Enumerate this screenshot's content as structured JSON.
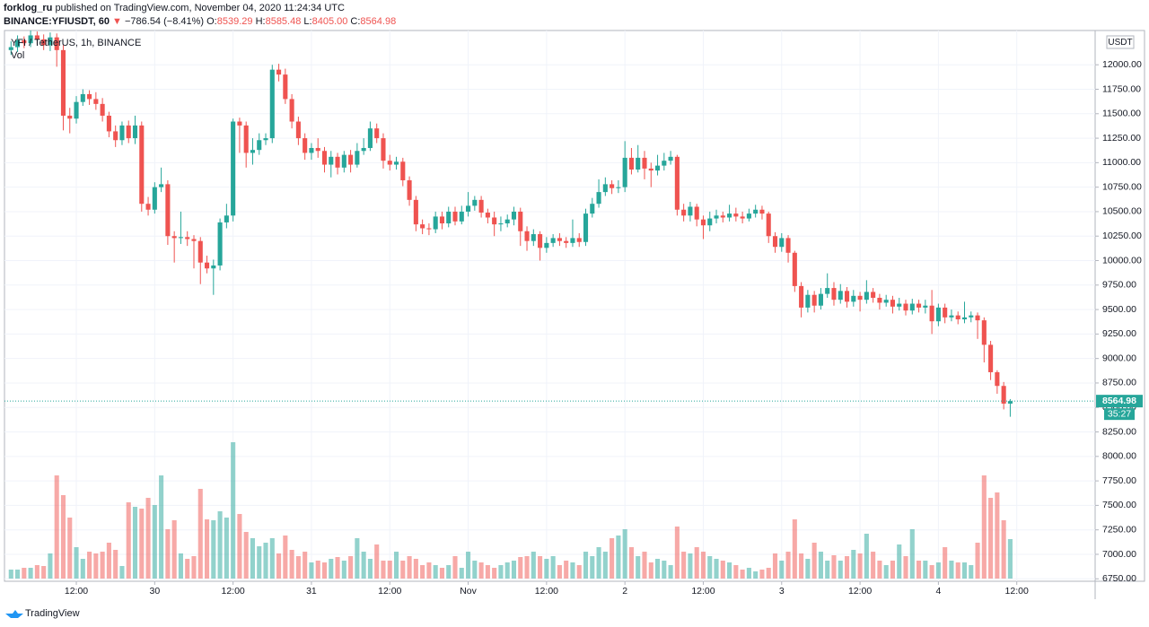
{
  "header": {
    "publisher": "forklog_ru",
    "published_text": "published on TradingView.com, November 04, 2020 11:24:34 UTC",
    "symbol": "BINANCE:YFIUSDT, 60",
    "arrow": "▼",
    "change": "−786.54 (−8.41%)",
    "ohlc": [
      {
        "key": "O:",
        "value": "8539.29"
      },
      {
        "key": "H:",
        "value": "8585.48"
      },
      {
        "key": "L:",
        "value": "8405.00"
      },
      {
        "key": "C:",
        "value": "8564.98"
      }
    ]
  },
  "legend": {
    "title": "YFI / TetherUS, 1h, BINANCE",
    "volume": "Vol"
  },
  "footer": {
    "brand": "TradingView"
  },
  "chart_data": {
    "type": "candlestick",
    "currency": "USDT",
    "up_color": "#26a69a",
    "down_color": "#ef5350",
    "grid": true,
    "ylim": [
      6725,
      12350
    ],
    "yticks": [
      {
        "value": 6750,
        "label": "6750.00"
      },
      {
        "value": 7000,
        "label": "7000.00"
      },
      {
        "value": 7250,
        "label": "7250.00"
      },
      {
        "value": 7500,
        "label": "7500.00"
      },
      {
        "value": 7750,
        "label": "7750.00"
      },
      {
        "value": 8000,
        "label": "8000.00"
      },
      {
        "value": 8250,
        "label": "8250.00"
      },
      {
        "value": 8500,
        "label": "8500.00"
      },
      {
        "value": 8750,
        "label": "8750.00"
      },
      {
        "value": 9000,
        "label": "9000.00"
      },
      {
        "value": 9250,
        "label": "9250.00"
      },
      {
        "value": 9500,
        "label": "9500.00"
      },
      {
        "value": 9750,
        "label": "9750.00"
      },
      {
        "value": 10000,
        "label": "10000.00"
      },
      {
        "value": 10250,
        "label": "10250.00"
      },
      {
        "value": 10500,
        "label": "10500.00"
      },
      {
        "value": 10750,
        "label": "10750.00"
      },
      {
        "value": 11000,
        "label": "11000.00"
      },
      {
        "value": 11250,
        "label": "11250.00"
      },
      {
        "value": 11500,
        "label": "11500.00"
      },
      {
        "value": 11750,
        "label": "11750.00"
      },
      {
        "value": 12000,
        "label": "12000.00"
      }
    ],
    "xlim": [
      -1,
      166
    ],
    "xticks": [
      {
        "value": 10,
        "label": "12:00"
      },
      {
        "value": 22,
        "label": "30"
      },
      {
        "value": 34,
        "label": "12:00"
      },
      {
        "value": 46,
        "label": "31"
      },
      {
        "value": 58,
        "label": "12:00"
      },
      {
        "value": 70,
        "label": "Nov"
      },
      {
        "value": 82,
        "label": "12:00"
      },
      {
        "value": 94,
        "label": "2"
      },
      {
        "value": 106,
        "label": "12:00"
      },
      {
        "value": 118,
        "label": "3"
      },
      {
        "value": 130,
        "label": "12:00"
      },
      {
        "value": 142,
        "label": "4"
      },
      {
        "value": 154,
        "label": "12:00"
      }
    ],
    "last_price": 8564.98,
    "last_price_label": "8564.98",
    "countdown": "35:27",
    "open": [
      12150,
      12180,
      12250,
      12220,
      12300,
      12260,
      12200,
      12280,
      12150,
      11480,
      11450,
      11620,
      11700,
      11650,
      11600,
      11480,
      11320,
      11230,
      11380,
      11250,
      11380,
      10580,
      10520,
      10750,
      10780,
      10250,
      10230,
      10240,
      10220,
      10200,
      9980,
      9920,
      9950,
      10390,
      10460,
      11420,
      11380,
      11100,
      11130,
      11230,
      11250,
      11950,
      11900,
      11650,
      11420,
      11250,
      11100,
      11150,
      11120,
      10980,
      11060,
      10950,
      11080,
      10980,
      11120,
      11150,
      11350,
      11250,
      11020,
      10980,
      11010,
      10820,
      10620,
      10370,
      10330,
      10320,
      10450,
      10380,
      10500,
      10400,
      10500,
      10560,
      10620,
      10490,
      10440,
      10370,
      10380,
      10420,
      10500,
      10300,
      10200,
      10270,
      10130,
      10180,
      10230,
      10200,
      10180,
      10230,
      10190,
      10480,
      10580,
      10700,
      10780,
      10740,
      10750,
      11050,
      10930,
      11050,
      10940,
      10920,
      10970,
      11020,
      11060,
      10520,
      10460,
      10550,
      10420,
      10360,
      10430,
      10460,
      10440,
      10480,
      10450,
      10430,
      10480,
      10520,
      10480,
      10250,
      10140,
      10230,
      10080,
      9740,
      9520,
      9650,
      9540,
      9660,
      9720,
      9600,
      9690,
      9580,
      9640,
      9600,
      9680,
      9620,
      9570,
      9600,
      9530,
      9560,
      9490,
      9560,
      9520,
      9540,
      9380,
      9520,
      9420,
      9440,
      9400,
      9420,
      9440,
      9390,
      9140,
      8860,
      8720,
      8539.29
    ],
    "high": [
      12240,
      12300,
      12290,
      12350,
      12340,
      12310,
      12330,
      12320,
      12200,
      11560,
      11680,
      11750,
      11740,
      11720,
      11660,
      11520,
      11380,
      11420,
      11430,
      11480,
      11420,
      10650,
      10800,
      10950,
      10820,
      10300,
      10500,
      10300,
      10260,
      10240,
      10050,
      10010,
      10430,
      10580,
      11450,
      11460,
      11420,
      11250,
      11300,
      11300,
      12000,
      12010,
      11960,
      11700,
      11470,
      11300,
      11200,
      11250,
      11160,
      11120,
      11100,
      11120,
      11130,
      11200,
      11250,
      11420,
      11400,
      11300,
      11080,
      11060,
      11050,
      10860,
      10660,
      10420,
      10380,
      10500,
      10500,
      10550,
      10550,
      10560,
      10700,
      10660,
      10660,
      10530,
      10500,
      10450,
      10470,
      10550,
      10540,
      10350,
      10320,
      10300,
      10240,
      10270,
      10280,
      10240,
      10420,
      10280,
      10530,
      10640,
      10830,
      10850,
      10820,
      10820,
      11220,
      11150,
      11180,
      11120,
      11000,
      11080,
      11100,
      11120,
      11080,
      10580,
      10600,
      10580,
      10460,
      10500,
      10520,
      10500,
      10570,
      10540,
      10500,
      10530,
      10570,
      10560,
      10500,
      10290,
      10280,
      10260,
      10100,
      9780,
      9700,
      9690,
      9720,
      9870,
      9780,
      9760,
      9730,
      9700,
      9680,
      9800,
      9720,
      9660,
      9650,
      9640,
      9620,
      9600,
      9610,
      9600,
      9600,
      9700,
      9560,
      9560,
      9500,
      9480,
      9580,
      9480,
      9470,
      9420,
      9180,
      8880,
      8760,
      8585.48
    ],
    "low": [
      12100,
      12130,
      12170,
      12180,
      12210,
      12150,
      12140,
      11980,
      11330,
      11300,
      11400,
      11580,
      11590,
      11540,
      11420,
      11260,
      11160,
      11180,
      11200,
      11190,
      10500,
      10460,
      10480,
      10700,
      10160,
      9980,
      10170,
      10150,
      9920,
      9760,
      9870,
      9650,
      9900,
      10330,
      10400,
      11100,
      10950,
      10980,
      11080,
      11180,
      11200,
      11830,
      11600,
      11350,
      11180,
      11030,
      11030,
      11050,
      10900,
      10850,
      10880,
      10900,
      10900,
      10950,
      11080,
      11120,
      11200,
      10940,
      10920,
      10930,
      10760,
      10560,
      10300,
      10270,
      10260,
      10280,
      10320,
      10340,
      10360,
      10370,
      10450,
      10510,
      10440,
      10380,
      10250,
      10300,
      10340,
      10360,
      10150,
      10100,
      10150,
      10000,
      10080,
      10140,
      10150,
      10130,
      10140,
      10140,
      10150,
      10440,
      10540,
      10660,
      10680,
      10690,
      10700,
      10880,
      10900,
      10830,
      10750,
      10870,
      10920,
      10980,
      10460,
      10400,
      10400,
      10350,
      10220,
      10300,
      10380,
      10390,
      10400,
      10400,
      10380,
      10400,
      10440,
      10420,
      10180,
      10080,
      10090,
      9980,
      9680,
      9420,
      9470,
      9470,
      9500,
      9620,
      9540,
      9560,
      9520,
      9530,
      9480,
      9560,
      9570,
      9500,
      9530,
      9460,
      9490,
      9440,
      9450,
      9470,
      9460,
      9250,
      9330,
      9360,
      9380,
      9350,
      9360,
      9370,
      9200,
      8960,
      8780,
      8640,
      8480,
      8405
    ],
    "close": [
      12180,
      12250,
      12220,
      12300,
      12260,
      12200,
      12280,
      12150,
      11480,
      11450,
      11620,
      11700,
      11650,
      11600,
      11480,
      11320,
      11230,
      11380,
      11250,
      11380,
      10580,
      10520,
      10750,
      10780,
      10250,
      10230,
      10240,
      10220,
      10200,
      9980,
      9920,
      9950,
      10390,
      10460,
      11420,
      11380,
      11100,
      11130,
      11230,
      11250,
      11950,
      11900,
      11650,
      11420,
      11250,
      11100,
      11150,
      11120,
      10980,
      11060,
      10950,
      11080,
      10980,
      11120,
      11150,
      11350,
      11250,
      11020,
      10980,
      11010,
      10820,
      10620,
      10370,
      10330,
      10320,
      10450,
      10380,
      10500,
      10400,
      10500,
      10560,
      10620,
      10490,
      10440,
      10370,
      10380,
      10420,
      10500,
      10300,
      10200,
      10270,
      10130,
      10180,
      10230,
      10200,
      10180,
      10230,
      10190,
      10480,
      10580,
      10700,
      10780,
      10740,
      10750,
      11050,
      10930,
      11050,
      10940,
      10920,
      10970,
      11020,
      11060,
      10520,
      10460,
      10550,
      10420,
      10360,
      10430,
      10460,
      10440,
      10480,
      10450,
      10430,
      10480,
      10520,
      10480,
      10250,
      10140,
      10230,
      10080,
      9740,
      9520,
      9650,
      9540,
      9660,
      9720,
      9600,
      9690,
      9580,
      9640,
      9600,
      9680,
      9620,
      9570,
      9600,
      9530,
      9560,
      9490,
      9560,
      9520,
      9540,
      9380,
      9520,
      9420,
      9440,
      9400,
      9420,
      9440,
      9390,
      9140,
      8860,
      8720,
      8539.29,
      8564.98
    ],
    "volume": [
      10,
      10,
      12,
      12,
      15,
      14,
      28,
      115,
      93,
      68,
      35,
      22,
      30,
      28,
      30,
      40,
      32,
      14,
      85,
      80,
      78,
      90,
      82,
      115,
      55,
      65,
      28,
      22,
      25,
      100,
      66,
      65,
      75,
      68,
      152,
      72,
      52,
      45,
      36,
      40,
      45,
      28,
      48,
      32,
      25,
      30,
      18,
      20,
      18,
      22,
      24,
      20,
      25,
      45,
      30,
      22,
      38,
      20,
      20,
      30,
      20,
      25,
      22,
      15,
      18,
      15,
      12,
      15,
      25,
      12,
      30,
      20,
      18,
      15,
      12,
      15,
      18,
      20,
      24,
      25,
      30,
      25,
      22,
      25,
      15,
      20,
      18,
      15,
      30,
      25,
      35,
      30,
      45,
      48,
      55,
      35,
      25,
      30,
      18,
      22,
      20,
      15,
      58,
      30,
      28,
      35,
      30,
      25,
      22,
      20,
      18,
      15,
      10,
      12,
      8,
      10,
      12,
      28,
      20,
      30,
      66,
      28,
      22,
      40,
      30,
      20,
      26,
      20,
      25,
      32,
      28,
      50,
      30,
      20,
      15,
      20,
      38,
      25,
      55,
      20,
      20,
      15,
      18,
      35,
      20,
      18,
      18,
      15,
      40,
      115,
      90,
      96,
      65,
      44
    ]
  }
}
